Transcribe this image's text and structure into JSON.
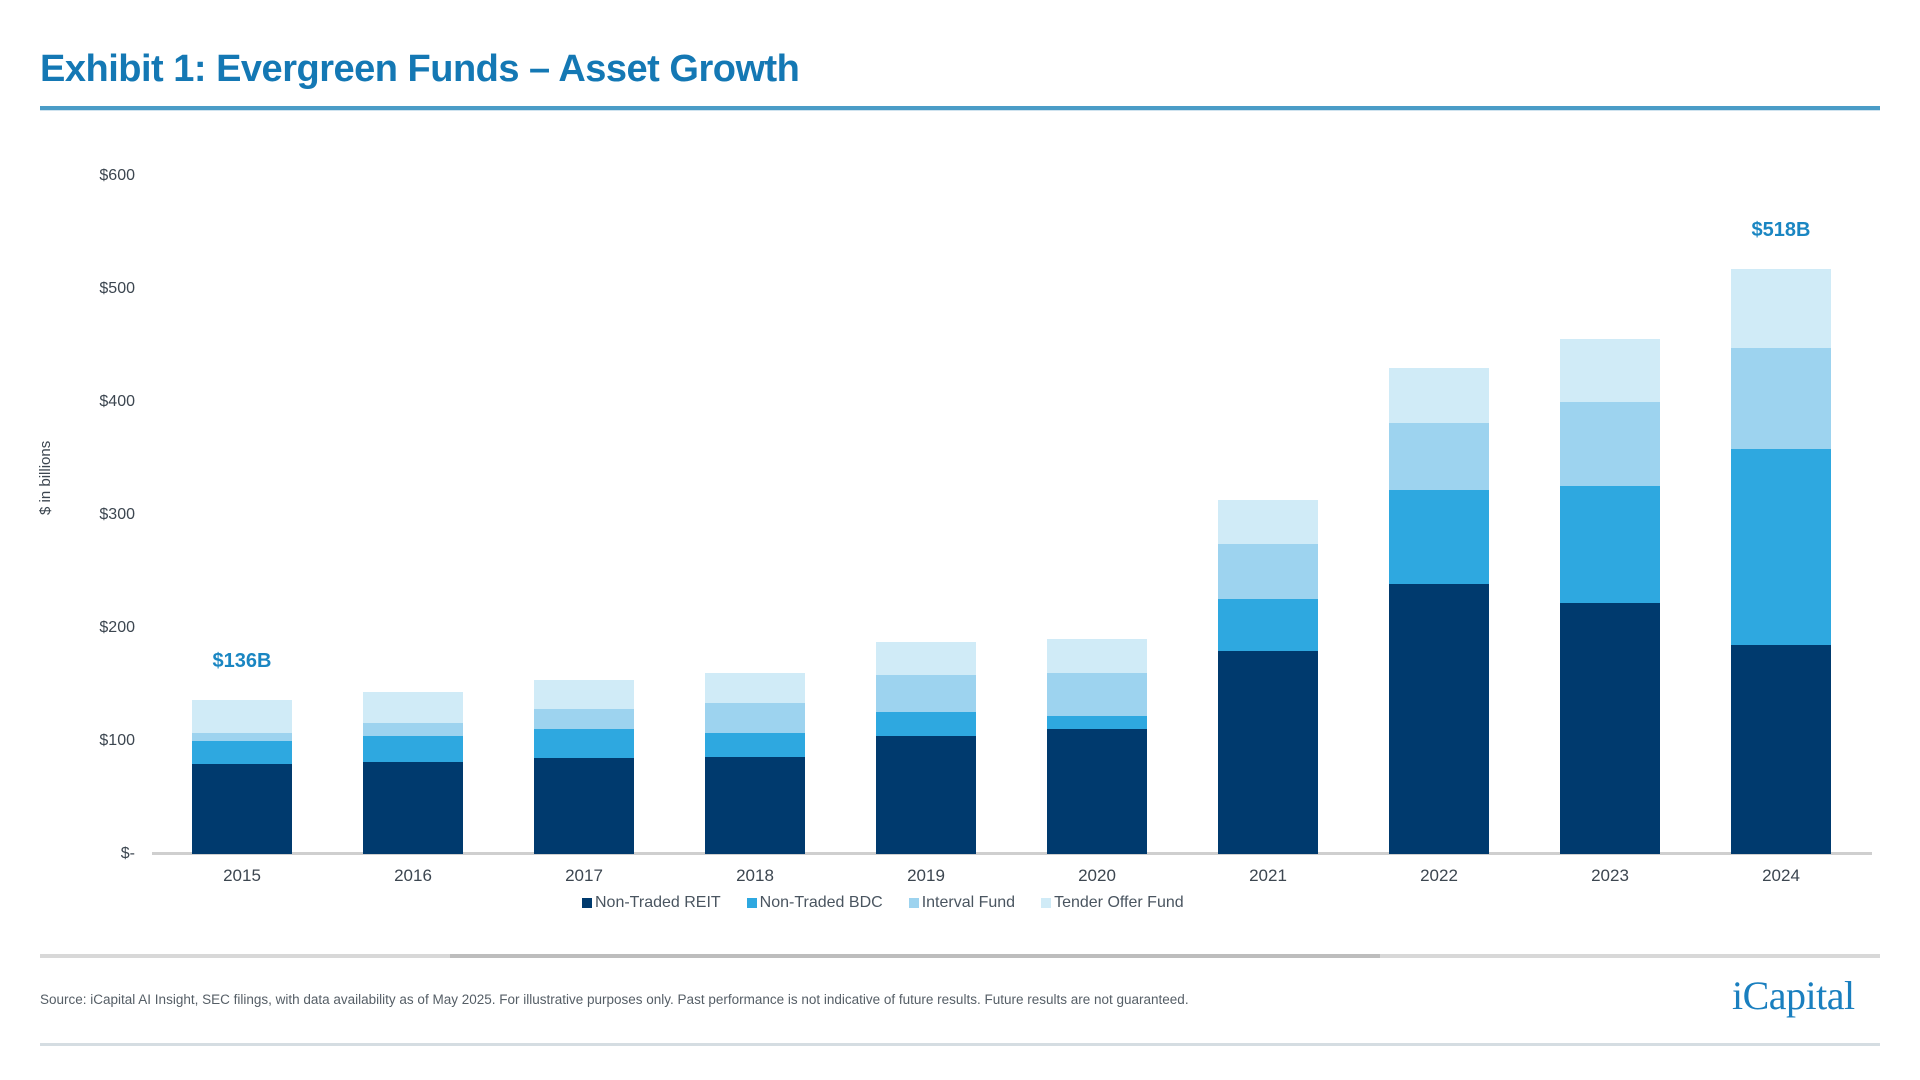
{
  "header": {
    "title": "Exhibit 1: Evergreen Funds – Asset Growth"
  },
  "chart_data": {
    "type": "bar",
    "stacked": true,
    "title": "Exhibit 1: Evergreen Funds – Asset Growth",
    "xlabel": "",
    "ylabel": "$ in billions",
    "ylim": [
      0,
      600
    ],
    "y_ticks": [
      "$-",
      "$100",
      "$200",
      "$300",
      "$400",
      "$500",
      "$600"
    ],
    "y_tick_values": [
      0,
      100,
      200,
      300,
      400,
      500,
      600
    ],
    "grid": false,
    "legend_position": "bottom",
    "categories": [
      "2015",
      "2016",
      "2017",
      "2018",
      "2019",
      "2020",
      "2021",
      "2022",
      "2023",
      "2024"
    ],
    "series": [
      {
        "name": "Non-Traded REIT",
        "color": "#003a6e",
        "values": [
          80,
          81,
          85,
          86,
          104,
          111,
          180,
          239,
          222,
          185
        ]
      },
      {
        "name": "Non-Traded BDC",
        "color": "#2ea8e0",
        "values": [
          20,
          23,
          26,
          21,
          22,
          11,
          46,
          83,
          104,
          173
        ]
      },
      {
        "name": "Interval Fund",
        "color": "#9dd3ef",
        "values": [
          7,
          12,
          17,
          27,
          32,
          38,
          48,
          59,
          74,
          90
        ]
      },
      {
        "name": "Tender Offer Fund",
        "color": "#d0ebf7",
        "values": [
          29,
          27,
          26,
          26,
          30,
          30,
          39,
          49,
          56,
          70
        ]
      }
    ],
    "totals": [
      136,
      143,
      154,
      160,
      188,
      190,
      313,
      430,
      456,
      518
    ],
    "annotations": [
      {
        "category": "2015",
        "text": "$136B"
      },
      {
        "category": "2024",
        "text": "$518B"
      }
    ]
  },
  "footer": {
    "source": "Source: iCapital AI Insight, SEC filings, with data availability as of May 2025. For illustrative purposes only. Past performance is not indicative of future results. Future results are not guaranteed.",
    "logo": "iCapital"
  }
}
